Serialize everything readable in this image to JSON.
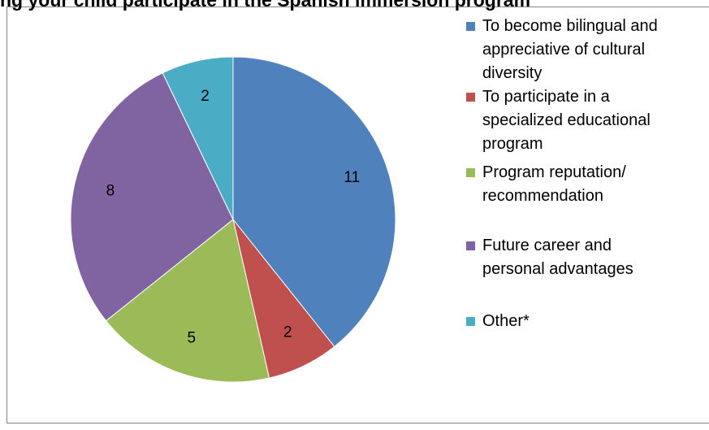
{
  "chart_data": {
    "type": "pie",
    "title": "ng your child participate in the Spanish immersion program",
    "categories": [
      "To become bilingual and appreciative of cultural diversity",
      "To participate in a specialized educational program",
      "Program reputation/ recommendation",
      "Future career and personal advantages",
      "Other*"
    ],
    "values": [
      11,
      2,
      5,
      8,
      2
    ],
    "colors": [
      "#4f81bd",
      "#c0504d",
      "#9bbb59",
      "#8064a2",
      "#4bacc6"
    ],
    "legend": "right"
  }
}
